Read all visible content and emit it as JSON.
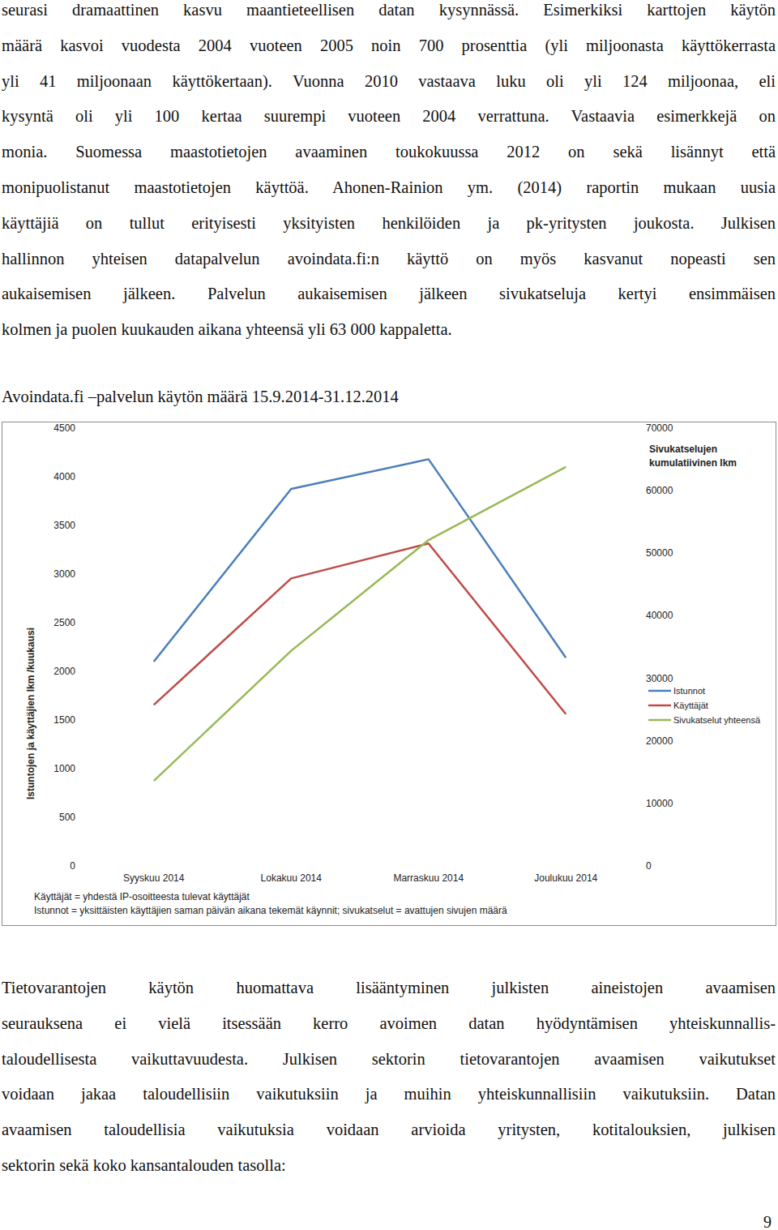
{
  "text_top": {
    "lines": [
      "seurasi dramaattinen kasvu maantieteellisen datan kysynnässä. Esimerkiksi karttojen käytön",
      "määrä kasvoi vuodesta 2004 vuoteen 2005 noin 700 prosenttia (yli miljoonasta käyttökerrasta",
      "yli 41 miljoonaan käyttökertaan). Vuonna 2010 vastaava luku oli yli 124 miljoonaa, eli",
      "kysyntä oli yli 100 kertaa suurempi vuoteen 2004 verrattuna. Vastaavia esimerkkejä on",
      "monia. Suomessa maastotietojen avaaminen toukokuussa 2012 on sekä lisännyt että",
      "monipuolistanut maastotietojen käyttöä. Ahonen-Rainion ym. (2014) raportin mukaan uusia",
      "käyttäjiä on tullut erityisesti yksityisten henkilöiden ja pk-yritysten joukosta. Julkisen",
      "hallinnon yhteisen datapalvelun avoindata.fi:n käyttö on myös kasvanut nopeasti sen",
      "aukaisemisen jälkeen. Palvelun aukaisemisen jälkeen sivukatseluja kertyi ensimmäisen",
      "kolmen ja puolen kuukauden aikana yhteensä yli 63 000 kappaletta."
    ]
  },
  "chart_data": {
    "type": "line",
    "title": "Avoindata.fi –palvelun käytön määrä 15.9.2014-31.12.2014",
    "y_label": "Istuntojen ja käyttäjien lkm /kuukausi",
    "y2_label": "Sivukatselujen kumulatiivinen lkm",
    "categories": [
      "Syyskuu 2014",
      "Lokakuu 2014",
      "Marraskuu 2014",
      "Joulukuu 2014"
    ],
    "series": [
      {
        "name": "Istunnot",
        "color": "#4a7ebb",
        "values": [
          2100,
          3875,
          4180,
          2140
        ]
      },
      {
        "name": "Käyttäjät",
        "color": "#be4b48",
        "values": [
          1655,
          2955,
          3315,
          1560
        ]
      },
      {
        "name": "Sivukatselut yhteensä",
        "color": "#98b954",
        "axis": "y2",
        "values": [
          13600,
          34400,
          52100,
          63800
        ]
      }
    ],
    "ylim": [
      0,
      4500
    ],
    "yticks": [
      0,
      500,
      1000,
      1500,
      2000,
      2500,
      3000,
      3500,
      4000,
      4500
    ],
    "y2lim": [
      0,
      70000
    ],
    "y2ticks": [
      0,
      10000,
      20000,
      30000,
      40000,
      50000,
      60000,
      70000
    ],
    "grid": false,
    "legend": "right",
    "annotations": [
      "Käyttäjät = yhdestä IP-osoitteesta tulevat käyttäjät",
      "Istunnot = yksittäisten käyttäjien saman päivän aikana tekemät käynnit; sivukatselut = avattujen sivujen määrä"
    ]
  },
  "text_bottom": {
    "lines": [
      "Tietovarantojen käytön huomattava lisääntyminen julkisten aineistojen avaamisen",
      "seurauksena ei vielä itsessään kerro avoimen datan hyödyntämisen yhteiskunnallis-",
      "taloudellisesta vaikuttavuudesta. Julkisen sektorin tietovarantojen avaamisen vaikutukset",
      "voidaan jakaa taloudellisiin vaikutuksiin ja muihin yhteiskunnallisiin vaikutuksiin. Datan",
      "avaamisen taloudellisia vaikutuksia voidaan arvioida yritysten, kotitalouksien, julkisen",
      "sektorin sekä koko kansantalouden tasolla:"
    ]
  },
  "page_number": "9"
}
